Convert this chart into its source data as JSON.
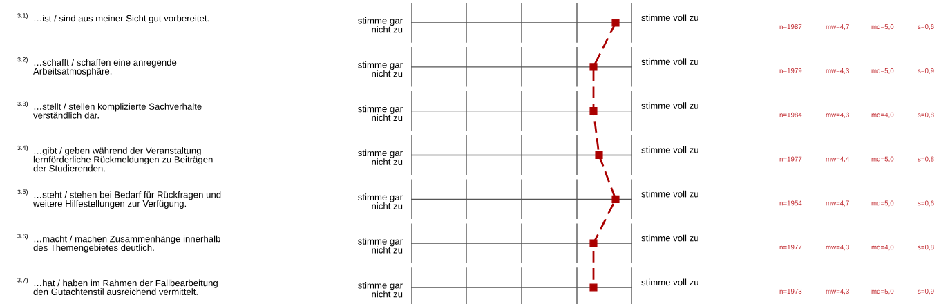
{
  "chart_data": {
    "type": "line",
    "orientation": "horizontal",
    "categories": [
      "3.1) …ist / sind aus meiner Sicht gut vorbereitet.",
      "3.2) …schafft / schaffen eine anregende\nArbeitsatmosphäre.",
      "3.3) …stellt / stellen komplizierte Sachverhalte\nverständlich dar.",
      "3.4) …gibt / geben während der Veranstaltung\nlernförderliche Rückmeldungen zu Beiträgen\nder Studierenden.",
      "3.5) …steht / stehen bei Bedarf für Rückfragen und\nweitere Hilfestellungen zur Verfügung.",
      "3.6) …macht / machen Zusammenhänge innerhalb\ndes Themengebietes deutlich.",
      "3.7) …hat / haben im Rahmen der Fallbearbeitung\nden Gutachtenstil ausreichend vermittelt."
    ],
    "series": [
      {
        "color": "#aa0000",
        "values": [
          4.7,
          4.3,
          4.3,
          4.4,
          4.7,
          4.3,
          4.3
        ],
        "value_labels": [
          "mw=4,7",
          "mw=4,3",
          "mw=4,3",
          "mw=4,4",
          "mw=4,7",
          "mw=4,3",
          "mw=4,3"
        ]
      }
    ],
    "xlim": [
      1,
      5
    ],
    "grid": true,
    "marker": "square",
    "line_style": "dashed",
    "annotations": [
      "stimme gar\nnicht zu",
      "stimme voll zu",
      "n=1987",
      "md=5,0",
      "s=0,6",
      "n=1979",
      "md=5,0",
      "s=0,9",
      "n=1984",
      "md=4,0",
      "s=0,8",
      "n=1977",
      "md=5,0",
      "s=0,8",
      "n=1954",
      "md=5,0",
      "s=0,6",
      "n=1977",
      "md=4,0",
      "s=0,8",
      "n=1973",
      "md=5,0",
      "s=0,9"
    ]
  }
}
